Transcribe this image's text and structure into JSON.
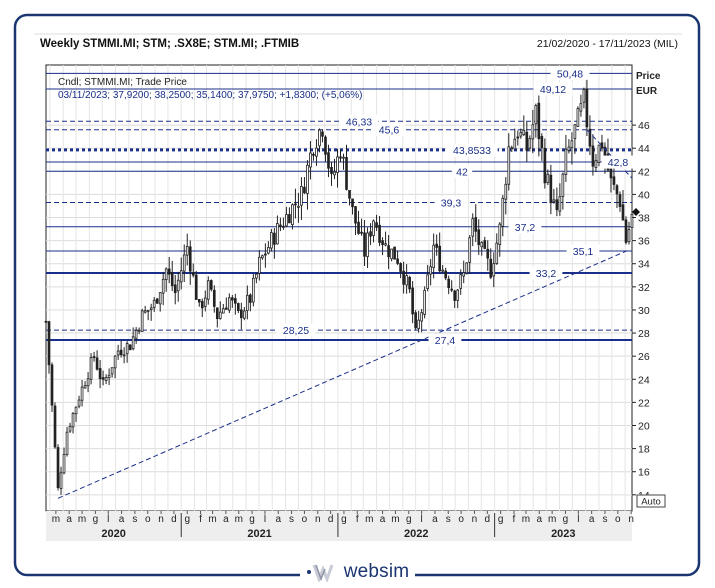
{
  "header": {
    "title": "Weekly STMMI.MI; STM; .SX8E; STM.MI; .FTMIB",
    "date_range": "21/02/2020 - 17/11/2023 (MIL)"
  },
  "info": {
    "line1": "Cndl; STMMI.MI; Trade Price",
    "line2": "03/11/2023; 37,9200; 38,2500; 35,1400; 37,9750; +1,8300; (+5,06%)"
  },
  "axis": {
    "unit_line1": "Price",
    "unit_line2": "EUR",
    "auto_label": "Auto",
    "y_ticks": [
      14,
      16,
      18,
      20,
      22,
      24,
      26,
      28,
      30,
      32,
      34,
      36,
      38,
      40,
      42,
      44,
      46
    ],
    "y_tick_labels": [
      "14",
      "16",
      "18",
      "20",
      "22",
      "24",
      "26",
      "28",
      "30",
      "32",
      "34",
      "36",
      "38",
      "40",
      "42",
      "44",
      "46"
    ],
    "ymin": 12.6,
    "ymax": 51.2,
    "x_month_letters": [
      "m",
      "a",
      "m",
      "g",
      "l",
      "a",
      "s",
      "o",
      "n",
      "d",
      "g",
      "f",
      "m",
      "a",
      "m",
      "g",
      "l",
      "a",
      "s",
      "o",
      "n",
      "d",
      "g",
      "f",
      "m",
      "a",
      "m",
      "g",
      "l",
      "a",
      "s",
      "o",
      "n",
      "d",
      "g",
      "f",
      "m",
      "a",
      "m",
      "g",
      "l",
      "a",
      "s",
      "o",
      "n"
    ],
    "years": [
      "2020",
      "2021",
      "2022",
      "2023"
    ]
  },
  "colors": {
    "navy": "#1a2f8a",
    "candle_up": "#ffffff",
    "candle_down": "#222222",
    "frame": "#1a3570"
  },
  "brand": {
    "name": "websim"
  },
  "chart_data": {
    "type": "candlestick",
    "title": "Weekly STMMI.MI; STM; .SX8E; STM.MI; .FTMIB",
    "ylabel": "Price EUR",
    "ylim": [
      12.6,
      51.2
    ],
    "x_range": [
      "2020-02-21",
      "2023-11-17"
    ],
    "grid": true,
    "levels": [
      {
        "value": 50.48,
        "label": "50,48",
        "style": "solid"
      },
      {
        "value": 49.12,
        "label": "49,12",
        "style": "solid"
      },
      {
        "value": 46.33,
        "label": "46,33",
        "style": "dashed"
      },
      {
        "value": 45.6,
        "label": "45,6",
        "style": "dashed"
      },
      {
        "value": 43.8533,
        "label": "43,8533",
        "style": "dotted-bold"
      },
      {
        "value": 42.8,
        "label": "42,8",
        "style": "solid"
      },
      {
        "value": 42,
        "label": "42",
        "style": "solid"
      },
      {
        "value": 39.3,
        "label": "39,3",
        "style": "dashed"
      },
      {
        "value": 37.2,
        "label": "37,2",
        "style": "solid"
      },
      {
        "value": 35.1,
        "label": "35,1",
        "style": "solid"
      },
      {
        "value": 33.2,
        "label": "33,2",
        "style": "bold"
      },
      {
        "value": 28.25,
        "label": "28,25",
        "style": "dashed"
      },
      {
        "value": 27.4,
        "label": "27,4",
        "style": "bold"
      }
    ],
    "trendlines": [
      {
        "from": {
          "date": "2020-03-20",
          "value": 13.7
        },
        "to": {
          "date": "2023-11-10",
          "value": 35.2
        },
        "style": "dashed"
      },
      {
        "from": {
          "date": "2023-08-04",
          "value": 45.6
        },
        "to": {
          "date": "2023-11-17",
          "value": 41.4
        },
        "style": "dashed"
      }
    ],
    "last_close": 37.975,
    "price_path": [
      [
        "2020-02-21",
        29.0
      ],
      [
        "2020-03-13",
        18.0
      ],
      [
        "2020-03-20",
        14.5
      ],
      [
        "2020-04-10",
        19.5
      ],
      [
        "2020-05-08",
        22.5
      ],
      [
        "2020-06-12",
        26.0
      ],
      [
        "2020-07-03",
        23.5
      ],
      [
        "2020-08-07",
        26.5
      ],
      [
        "2020-09-04",
        27.0
      ],
      [
        "2020-10-02",
        29.5
      ],
      [
        "2020-10-30",
        30.5
      ],
      [
        "2020-11-27",
        33.5
      ],
      [
        "2020-12-18",
        31.5
      ],
      [
        "2021-01-15",
        35.5
      ],
      [
        "2021-02-12",
        30.0
      ],
      [
        "2021-03-05",
        32.0
      ],
      [
        "2021-03-26",
        29.5
      ],
      [
        "2021-04-23",
        31.0
      ],
      [
        "2021-05-14",
        29.5
      ],
      [
        "2021-06-11",
        31.0
      ],
      [
        "2021-07-02",
        34.0
      ],
      [
        "2021-08-06",
        36.5
      ],
      [
        "2021-09-10",
        38.5
      ],
      [
        "2021-10-08",
        40.0
      ],
      [
        "2021-11-05",
        44.5
      ],
      [
        "2021-11-26",
        46.0
      ],
      [
        "2021-12-17",
        41.0
      ],
      [
        "2022-01-07",
        44.0
      ],
      [
        "2022-02-04",
        38.5
      ],
      [
        "2022-03-04",
        35.0
      ],
      [
        "2022-03-25",
        38.0
      ],
      [
        "2022-04-22",
        35.5
      ],
      [
        "2022-05-20",
        34.5
      ],
      [
        "2022-06-17",
        31.5
      ],
      [
        "2022-07-01",
        27.8
      ],
      [
        "2022-07-22",
        31.0
      ],
      [
        "2022-08-12",
        35.5
      ],
      [
        "2022-09-02",
        33.5
      ],
      [
        "2022-09-30",
        31.5
      ],
      [
        "2022-10-21",
        33.0
      ],
      [
        "2022-11-11",
        37.5
      ],
      [
        "2022-12-02",
        35.0
      ],
      [
        "2022-12-23",
        33.5
      ],
      [
        "2023-01-13",
        37.0
      ],
      [
        "2023-02-03",
        44.0
      ],
      [
        "2023-02-24",
        45.5
      ],
      [
        "2023-03-17",
        44.0
      ],
      [
        "2023-04-07",
        47.0
      ],
      [
        "2023-04-28",
        42.0
      ],
      [
        "2023-05-26",
        38.0
      ],
      [
        "2023-06-16",
        43.0
      ],
      [
        "2023-07-07",
        45.5
      ],
      [
        "2023-07-28",
        48.0
      ],
      [
        "2023-08-18",
        43.0
      ],
      [
        "2023-09-08",
        44.5
      ],
      [
        "2023-09-29",
        41.0
      ],
      [
        "2023-10-20",
        39.5
      ],
      [
        "2023-11-03",
        36.0
      ],
      [
        "2023-11-17",
        38.0
      ]
    ]
  }
}
